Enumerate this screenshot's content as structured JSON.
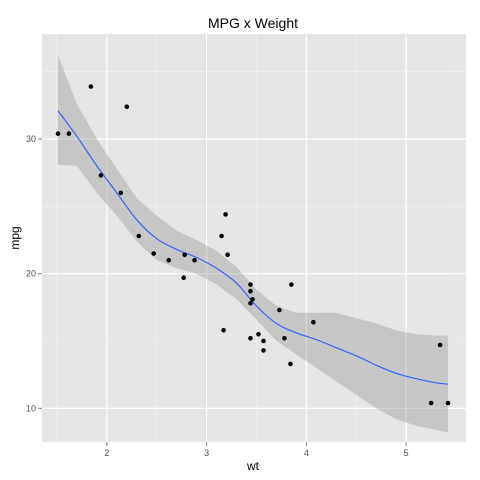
{
  "chart_data": {
    "type": "scatter",
    "title": "MPG x Weight",
    "xlabel": "wt",
    "ylabel": "mpg",
    "xlim": [
      1.35,
      5.6
    ],
    "ylim": [
      7.5,
      37.8
    ],
    "x_ticks": [
      2,
      3,
      4,
      5
    ],
    "x_tick_labels": [
      "2",
      "3",
      "4",
      "5"
    ],
    "y_ticks": [
      10,
      20,
      30
    ],
    "y_tick_labels": [
      "10",
      "20",
      "30"
    ],
    "grid": true,
    "legend": "none",
    "background": "#e5e5e5",
    "point_color": "#000000",
    "smooth_color": "#3366ff",
    "ribbon_color": "#999999",
    "points": [
      {
        "x": 1.51,
        "y": 30.4
      },
      {
        "x": 1.62,
        "y": 30.4
      },
      {
        "x": 1.84,
        "y": 33.9
      },
      {
        "x": 1.94,
        "y": 27.3
      },
      {
        "x": 2.14,
        "y": 26.0
      },
      {
        "x": 2.2,
        "y": 32.4
      },
      {
        "x": 2.32,
        "y": 22.8
      },
      {
        "x": 2.47,
        "y": 21.5
      },
      {
        "x": 2.62,
        "y": 21.0
      },
      {
        "x": 2.77,
        "y": 19.7
      },
      {
        "x": 2.78,
        "y": 21.4
      },
      {
        "x": 2.88,
        "y": 21.0
      },
      {
        "x": 3.15,
        "y": 22.8
      },
      {
        "x": 3.17,
        "y": 15.8
      },
      {
        "x": 3.19,
        "y": 24.4
      },
      {
        "x": 3.21,
        "y": 21.4
      },
      {
        "x": 3.44,
        "y": 19.2
      },
      {
        "x": 3.44,
        "y": 18.7
      },
      {
        "x": 3.44,
        "y": 17.8
      },
      {
        "x": 3.44,
        "y": 15.2
      },
      {
        "x": 3.46,
        "y": 18.1
      },
      {
        "x": 3.52,
        "y": 15.5
      },
      {
        "x": 3.57,
        "y": 15.0
      },
      {
        "x": 3.57,
        "y": 14.3
      },
      {
        "x": 3.73,
        "y": 17.3
      },
      {
        "x": 3.78,
        "y": 15.2
      },
      {
        "x": 3.84,
        "y": 13.3
      },
      {
        "x": 3.85,
        "y": 19.2
      },
      {
        "x": 4.07,
        "y": 16.4
      },
      {
        "x": 5.25,
        "y": 10.4
      },
      {
        "x": 5.34,
        "y": 14.7
      },
      {
        "x": 5.42,
        "y": 10.4
      }
    ],
    "smooth": [
      {
        "x": 1.51,
        "y": 32.1,
        "lo": 28.1,
        "hi": 36.2
      },
      {
        "x": 1.7,
        "y": 30.2,
        "lo": 28.0,
        "hi": 32.6
      },
      {
        "x": 1.9,
        "y": 28.0,
        "lo": 26.0,
        "hi": 30.0
      },
      {
        "x": 2.1,
        "y": 26.0,
        "lo": 24.3,
        "hi": 27.8
      },
      {
        "x": 2.3,
        "y": 24.0,
        "lo": 22.4,
        "hi": 25.6
      },
      {
        "x": 2.5,
        "y": 22.6,
        "lo": 21.0,
        "hi": 24.3
      },
      {
        "x": 2.7,
        "y": 21.8,
        "lo": 20.4,
        "hi": 23.2
      },
      {
        "x": 2.9,
        "y": 21.2,
        "lo": 20.0,
        "hi": 22.5
      },
      {
        "x": 3.1,
        "y": 20.4,
        "lo": 19.2,
        "hi": 21.7
      },
      {
        "x": 3.3,
        "y": 19.3,
        "lo": 18.1,
        "hi": 20.5
      },
      {
        "x": 3.5,
        "y": 17.6,
        "lo": 16.6,
        "hi": 18.8
      },
      {
        "x": 3.7,
        "y": 16.3,
        "lo": 15.0,
        "hi": 17.6
      },
      {
        "x": 3.9,
        "y": 15.6,
        "lo": 14.0,
        "hi": 17.1
      },
      {
        "x": 4.1,
        "y": 15.1,
        "lo": 13.0,
        "hi": 17.1
      },
      {
        "x": 4.3,
        "y": 14.5,
        "lo": 12.0,
        "hi": 17.1
      },
      {
        "x": 4.5,
        "y": 13.9,
        "lo": 11.0,
        "hi": 16.7
      },
      {
        "x": 4.7,
        "y": 13.2,
        "lo": 10.0,
        "hi": 16.3
      },
      {
        "x": 4.9,
        "y": 12.6,
        "lo": 9.2,
        "hi": 15.8
      },
      {
        "x": 5.1,
        "y": 12.2,
        "lo": 8.7,
        "hi": 15.5
      },
      {
        "x": 5.3,
        "y": 11.9,
        "lo": 8.4,
        "hi": 15.4
      },
      {
        "x": 5.42,
        "y": 11.8,
        "lo": 8.2,
        "hi": 15.4
      }
    ]
  }
}
